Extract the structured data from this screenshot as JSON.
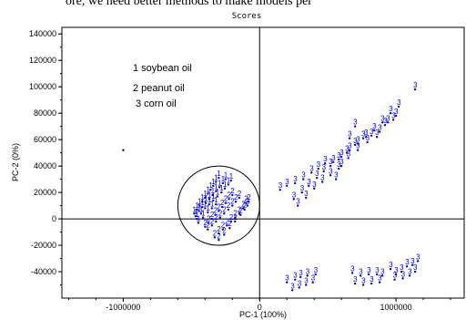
{
  "top_text": "ore, we need better methods to make models per",
  "chart_data": {
    "type": "scatter",
    "title": "Scores",
    "xlabel": "PC-1 (100%)",
    "ylabel": "PC-2 (0%)",
    "xlim": [
      -1450000,
      1500000
    ],
    "ylim": [
      -60000,
      145000
    ],
    "x_ticks": [
      -1000000,
      0,
      1000000
    ],
    "x_tick_labels": [
      "-1000000",
      "0",
      "1000000"
    ],
    "y_ticks": [
      -40000,
      -20000,
      0,
      20000,
      40000,
      60000,
      80000,
      100000,
      120000,
      140000
    ],
    "y_tick_labels": [
      "-40000",
      "-20000",
      "0",
      "20000",
      "40000",
      "60000",
      "80000",
      "100000",
      "120000",
      "140000"
    ],
    "legend": [
      {
        "label": "1 soybean oil"
      },
      {
        "label": "2 peanut oil"
      },
      {
        "label": "3 corn oil"
      }
    ],
    "point_color": "#0000cc",
    "circle": {
      "cx": -300000,
      "cy": 10000,
      "rx": 300000,
      "ry": 30000
    },
    "series": [
      {
        "name": "1 soybean oil",
        "label": "1",
        "points": [
          [
            -480000,
            4000
          ],
          [
            -460000,
            7000
          ],
          [
            -440000,
            10000
          ],
          [
            -420000,
            13000
          ],
          [
            -400000,
            16000
          ],
          [
            -380000,
            19000
          ],
          [
            -360000,
            22000
          ],
          [
            -340000,
            25000
          ],
          [
            -320000,
            28000
          ],
          [
            -300000,
            31000
          ],
          [
            -470000,
            2000
          ],
          [
            -445000,
            6000
          ],
          [
            -420000,
            9000
          ],
          [
            -395000,
            12000
          ],
          [
            -370000,
            15000
          ],
          [
            -345000,
            18000
          ],
          [
            -320000,
            21000
          ],
          [
            -295000,
            24000
          ],
          [
            -270000,
            27000
          ],
          [
            -250000,
            30000
          ],
          [
            -460000,
            0
          ],
          [
            -430000,
            4000
          ],
          [
            -400000,
            8000
          ],
          [
            -370000,
            11000
          ],
          [
            -340000,
            14000
          ],
          [
            -310000,
            17000
          ],
          [
            -280000,
            20000
          ],
          [
            -255000,
            23000
          ],
          [
            -230000,
            26000
          ],
          [
            -210000,
            29000
          ],
          [
            -450000,
            -3000
          ],
          [
            -415000,
            1000
          ],
          [
            -380000,
            5000
          ],
          [
            -350000,
            8000
          ],
          [
            -320000,
            11000
          ]
        ]
      },
      {
        "name": "2 peanut oil",
        "label": "2",
        "points": [
          [
            -400000,
            -6000
          ],
          [
            -375000,
            -3000
          ],
          [
            -350000,
            0
          ],
          [
            -325000,
            3000
          ],
          [
            -300000,
            6000
          ],
          [
            -275000,
            9000
          ],
          [
            -250000,
            12000
          ],
          [
            -225000,
            15000
          ],
          [
            -200000,
            18000
          ],
          [
            -380000,
            -8000
          ],
          [
            -350000,
            -5000
          ],
          [
            -320000,
            -2000
          ],
          [
            -290000,
            1000
          ],
          [
            -260000,
            4000
          ],
          [
            -230000,
            7000
          ],
          [
            -200000,
            10000
          ],
          [
            -175000,
            13000
          ],
          [
            -150000,
            16000
          ],
          [
            -330000,
            -14000
          ],
          [
            -300000,
            -11000
          ],
          [
            -270000,
            -8000
          ],
          [
            -240000,
            -5000
          ],
          [
            -210000,
            -2000
          ],
          [
            -180000,
            1000
          ],
          [
            -150000,
            4000
          ],
          [
            -120000,
            8000
          ],
          [
            -100000,
            12000
          ],
          [
            -300000,
            -16000
          ],
          [
            -260000,
            -12000
          ],
          [
            -220000,
            -7000
          ],
          [
            -180000,
            -2000
          ],
          [
            -140000,
            3000
          ],
          [
            -110000,
            7000
          ],
          [
            -90000,
            10000
          ],
          [
            -80000,
            13000
          ]
        ]
      },
      {
        "name": "3 corn oil",
        "label": "3",
        "points": [
          [
            150000,
            22000
          ],
          [
            200000,
            25000
          ],
          [
            260000,
            27000
          ],
          [
            320000,
            30000
          ],
          [
            380000,
            35000
          ],
          [
            430000,
            38000
          ],
          [
            480000,
            42000
          ],
          [
            540000,
            43000
          ],
          [
            600000,
            47000
          ],
          [
            660000,
            52000
          ],
          [
            720000,
            57000
          ],
          [
            780000,
            62000
          ],
          [
            840000,
            67000
          ],
          [
            900000,
            73000
          ],
          [
            960000,
            80000
          ],
          [
            1020000,
            85000
          ],
          [
            1140000,
            98000
          ],
          [
            250000,
            15000
          ],
          [
            310000,
            20000
          ],
          [
            360000,
            25000
          ],
          [
            420000,
            31000
          ],
          [
            470000,
            36000
          ],
          [
            520000,
            40000
          ],
          [
            580000,
            45000
          ],
          [
            640000,
            50000
          ],
          [
            700000,
            56000
          ],
          [
            760000,
            61000
          ],
          [
            820000,
            63000
          ],
          [
            880000,
            66000
          ],
          [
            940000,
            73000
          ],
          [
            1000000,
            78000
          ],
          [
            280000,
            10000
          ],
          [
            340000,
            16000
          ],
          [
            400000,
            23000
          ],
          [
            460000,
            28000
          ],
          [
            520000,
            33000
          ],
          [
            580000,
            38000
          ],
          [
            650000,
            46000
          ],
          [
            720000,
            52000
          ],
          [
            790000,
            58000
          ],
          [
            860000,
            62000
          ],
          [
            920000,
            71000
          ],
          [
            980000,
            75000
          ],
          [
            600000,
            40000
          ],
          [
            700000,
            70000
          ],
          [
            660000,
            61000
          ],
          [
            560000,
            30000
          ],
          [
            200000,
            -48000
          ],
          [
            260000,
            -46000
          ],
          [
            300000,
            -44000
          ],
          [
            350000,
            -43000
          ],
          [
            410000,
            -42000
          ],
          [
            240000,
            -54000
          ],
          [
            290000,
            -52000
          ],
          [
            340000,
            -50000
          ],
          [
            390000,
            -48000
          ],
          [
            680000,
            -41000
          ],
          [
            740000,
            -43000
          ],
          [
            800000,
            -42000
          ],
          [
            860000,
            -42000
          ],
          [
            900000,
            -43000
          ],
          [
            700000,
            -49000
          ],
          [
            760000,
            -50000
          ],
          [
            820000,
            -49000
          ],
          [
            880000,
            -48000
          ],
          [
            960000,
            -38000
          ],
          [
            1000000,
            -42000
          ],
          [
            1040000,
            -40000
          ],
          [
            1080000,
            -36000
          ],
          [
            1120000,
            -35000
          ],
          [
            1160000,
            -32000
          ],
          [
            990000,
            -46000
          ],
          [
            1050000,
            -45000
          ],
          [
            1100000,
            -43000
          ],
          [
            1140000,
            -40000
          ]
        ]
      }
    ]
  }
}
